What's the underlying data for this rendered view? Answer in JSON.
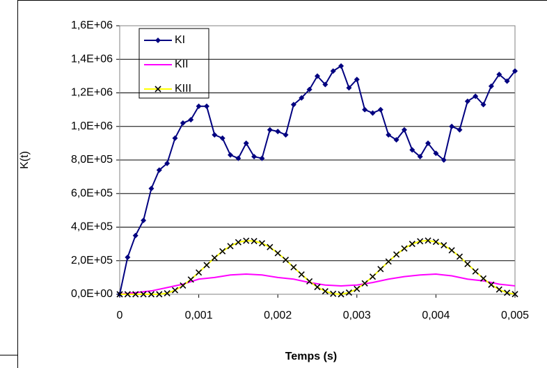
{
  "chart_data": {
    "type": "line",
    "x_label": "Temps (s)",
    "y_label": "K(t)",
    "xlim": [
      0,
      0.005
    ],
    "xticks": [
      0,
      {
        "value": 0.001,
        "label": "0,001"
      },
      {
        "value": 0.002,
        "label": "0,002"
      },
      {
        "value": 0.003,
        "label": "0,003"
      },
      {
        "value": 0.004,
        "label": "0,004"
      },
      {
        "value": 0.005,
        "label": "0,005"
      }
    ],
    "ylim": [
      0,
      1600000
    ],
    "yticks": [
      {
        "value": 0,
        "label": "0,0E+00"
      },
      {
        "value": 200000,
        "label": "2,0E+05"
      },
      {
        "value": 400000,
        "label": "4,0E+05"
      },
      {
        "value": 600000,
        "label": "6,0E+05"
      },
      {
        "value": 800000,
        "label": "8,0E+05"
      },
      {
        "value": 1000000,
        "label": "1,0E+06"
      },
      {
        "value": 1200000,
        "label": "1,2E+06"
      },
      {
        "value": 1400000,
        "label": "1,4E+06"
      },
      {
        "value": 1600000,
        "label": "1,6E+06"
      }
    ],
    "grid": true,
    "legend": "top-left",
    "series": [
      {
        "name": "KI",
        "color": "#000080",
        "marker": "diamond",
        "marker_color": "#000080",
        "x": [
          0,
          0.0001,
          0.0002,
          0.0003,
          0.0004,
          0.0005,
          0.0006,
          0.0007,
          0.0008,
          0.0009,
          0.001,
          0.0011,
          0.0012,
          0.0013,
          0.0014,
          0.0015,
          0.0016,
          0.0017,
          0.0018,
          0.0019,
          0.002,
          0.0021,
          0.0022,
          0.0023,
          0.0024,
          0.0025,
          0.0026,
          0.0027,
          0.0028,
          0.0029,
          0.003,
          0.0031,
          0.0032,
          0.0033,
          0.0034,
          0.0035,
          0.0036,
          0.0037,
          0.0038,
          0.0039,
          0.004,
          0.0041,
          0.0042,
          0.0043,
          0.0044,
          0.0045,
          0.0046,
          0.0047,
          0.0048,
          0.0049,
          0.005
        ],
        "values": [
          0,
          220000,
          350000,
          440000,
          630000,
          740000,
          780000,
          930000,
          1020000,
          1040000,
          1120000,
          1120000,
          950000,
          930000,
          830000,
          810000,
          900000,
          820000,
          810000,
          980000,
          970000,
          950000,
          1130000,
          1170000,
          1220000,
          1300000,
          1250000,
          1330000,
          1360000,
          1230000,
          1280000,
          1100000,
          1080000,
          1100000,
          950000,
          920000,
          980000,
          860000,
          820000,
          900000,
          840000,
          800000,
          1000000,
          980000,
          1150000,
          1180000,
          1130000,
          1240000,
          1310000,
          1270000,
          1330000
        ]
      },
      {
        "name": "KII",
        "color": "#ff00ff",
        "x": [
          0,
          0.0002,
          0.0004,
          0.0006,
          0.0008,
          0.001,
          0.0012,
          0.0014,
          0.0016,
          0.0018,
          0.002,
          0.0022,
          0.0024,
          0.0026,
          0.0028,
          0.003,
          0.0032,
          0.0034,
          0.0036,
          0.0038,
          0.004,
          0.0042,
          0.0044,
          0.0046,
          0.0048,
          0.005
        ],
        "values": [
          0,
          10000,
          20000,
          40000,
          60000,
          90000,
          100000,
          115000,
          120000,
          115000,
          100000,
          90000,
          70000,
          55000,
          50000,
          55000,
          70000,
          90000,
          105000,
          115000,
          120000,
          110000,
          90000,
          80000,
          60000,
          50000
        ]
      },
      {
        "name": "KIII",
        "color": "#ffff00",
        "marker": "x",
        "marker_color": "#000000",
        "x": [
          0,
          0.0001,
          0.0002,
          0.0003,
          0.0004,
          0.0005,
          0.0006,
          0.0007,
          0.0008,
          0.0009,
          0.001,
          0.0011,
          0.0012,
          0.0013,
          0.0014,
          0.0015,
          0.0016,
          0.0017,
          0.0018,
          0.0019,
          0.002,
          0.0021,
          0.0022,
          0.0023,
          0.0024,
          0.0025,
          0.0026,
          0.0027,
          0.0028,
          0.0029,
          0.003,
          0.0031,
          0.0032,
          0.0033,
          0.0034,
          0.0035,
          0.0036,
          0.0037,
          0.0038,
          0.0039,
          0.004,
          0.0041,
          0.0042,
          0.0043,
          0.0044,
          0.0045,
          0.0046,
          0.0047,
          0.0048,
          0.0049,
          0.005
        ],
        "values": [
          0,
          0,
          0,
          0,
          0,
          0,
          6000,
          24000,
          52000,
          88000,
          130000,
          174000,
          217000,
          256000,
          287000,
          310000,
          319000,
          317000,
          304000,
          281000,
          245000,
          205000,
          161000,
          118000,
          77000,
          43000,
          18000,
          3000,
          0,
          10000,
          32000,
          65000,
          105000,
          150000,
          195000,
          237000,
          273000,
          300000,
          316000,
          320000,
          312000,
          292000,
          262000,
          224000,
          180000,
          136000,
          94000,
          57000,
          28000,
          9000,
          1000
        ]
      }
    ]
  }
}
